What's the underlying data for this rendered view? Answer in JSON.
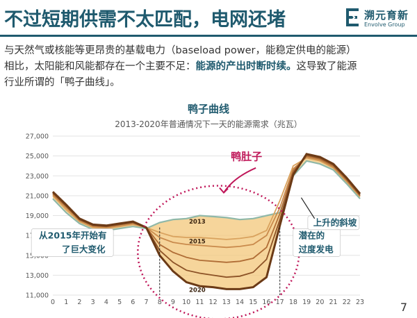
{
  "slide": {
    "title": "不过短期供需不太匹配，电网还堵",
    "logo_cn": "溯元育新",
    "logo_en": "Envolve Group",
    "paragraph": {
      "line1": "与天然气或核能等更昂贵的基载电力（baseload   power，能稳定供电的能源）",
      "line2_pre": "相比，太阳能和风能都存在一个主要不足：",
      "line2_hl": "能源的产出时断时续。",
      "line2_post": "这导致了能源",
      "line3": "行业所谓的「鸭子曲线」。"
    },
    "page_number": "7"
  },
  "colors": {
    "brand": "#1f5a6e",
    "accent_pink": "#c0185a",
    "fill_yellow": "#f3c77a",
    "line_2013": "#8fb8a8",
    "line_2020": "#6b3a16"
  },
  "chart_data": {
    "type": "line",
    "title": "鸭子曲线",
    "subtitle": "2013-2020年普通情况下一天的能源需求（兆瓦）",
    "xlabel": "",
    "ylabel": "",
    "x": [
      0,
      1,
      2,
      3,
      4,
      5,
      6,
      7,
      8,
      9,
      10,
      11,
      12,
      13,
      14,
      15,
      16,
      17,
      18,
      19,
      20,
      21,
      22,
      23
    ],
    "xlim": [
      0,
      23
    ],
    "ylim": [
      11000,
      27000
    ],
    "yticks": [
      11000,
      13000,
      15000,
      17000,
      19000,
      21000,
      23000,
      25000,
      27000
    ],
    "ytick_labels": [
      "11,000",
      "13,000",
      "15,000",
      "17,000",
      "19,000",
      "21,000",
      "23,000",
      "25,000",
      "27,000"
    ],
    "grid": "horizontal",
    "series": [
      {
        "name": "2013",
        "color": "#8fb8a8",
        "values": [
          20700,
          19300,
          18200,
          17600,
          17500,
          17700,
          17900,
          17700,
          18300,
          18600,
          18700,
          19000,
          18900,
          18800,
          18600,
          18700,
          19000,
          19300,
          23000,
          24500,
          24200,
          23600,
          22200,
          20700
        ]
      },
      {
        "name": "",
        "color": "#d9a25e",
        "values": [
          21000,
          19600,
          18400,
          17800,
          17700,
          17900,
          18100,
          17800,
          17300,
          16900,
          16800,
          16800,
          16700,
          16600,
          16700,
          16900,
          17500,
          20500,
          24000,
          24800,
          24500,
          23800,
          22400,
          20900
        ]
      },
      {
        "name": "2015",
        "color": "#c98a4c",
        "values": [
          21100,
          19800,
          18500,
          17900,
          17800,
          18000,
          18200,
          17800,
          16800,
          16300,
          16100,
          16000,
          15900,
          15800,
          15900,
          16100,
          17000,
          19800,
          23700,
          24900,
          24600,
          23900,
          22500,
          21000
        ]
      },
      {
        "name": "",
        "color": "#b06d36",
        "values": [
          21200,
          19900,
          18600,
          18000,
          17900,
          18100,
          18300,
          17800,
          16100,
          15300,
          14800,
          14500,
          14400,
          14300,
          14400,
          14700,
          15800,
          19200,
          23500,
          25000,
          24700,
          24000,
          22600,
          21000
        ]
      },
      {
        "name": "",
        "color": "#8c5226",
        "values": [
          21300,
          20000,
          18600,
          18000,
          17900,
          18100,
          18300,
          17800,
          15500,
          14300,
          13500,
          13200,
          13000,
          12800,
          12900,
          13300,
          14600,
          18600,
          23300,
          25100,
          24800,
          24100,
          22700,
          21100
        ]
      },
      {
        "name": "2020",
        "color": "#6b3a16",
        "values": [
          21400,
          20100,
          18700,
          18100,
          18000,
          18200,
          18400,
          17800,
          15000,
          13400,
          12300,
          11900,
          11800,
          11600,
          11600,
          11800,
          12800,
          18000,
          23100,
          25200,
          24900,
          24200,
          22800,
          21200
        ]
      }
    ],
    "annotations": [
      {
        "text": "鸭肚子",
        "x": 14.5,
        "y": 24600
      },
      {
        "text": "从2015年开始有",
        "x": 1.5,
        "y": 16700
      },
      {
        "text": "了巨大变化",
        "x": 2.3,
        "y": 15300
      },
      {
        "text": "上升的斜坡",
        "x": 19.5,
        "y": 18000
      },
      {
        "text": "潜在的",
        "x": 18.4,
        "y": 16700
      },
      {
        "text": "过度发电",
        "x": 18.4,
        "y": 15300
      }
    ],
    "series_labels": [
      {
        "text": "2013",
        "x": 10.2,
        "y": 18200
      },
      {
        "text": "2015",
        "x": 10.2,
        "y": 16200
      },
      {
        "text": "2020",
        "x": 10.2,
        "y": 11300
      }
    ]
  }
}
